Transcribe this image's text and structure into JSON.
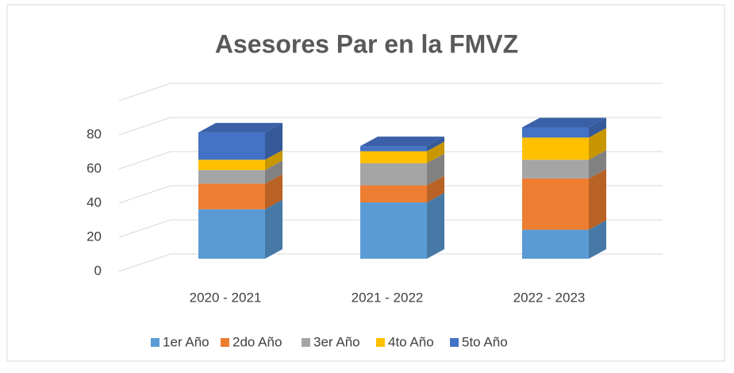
{
  "chart_data": {
    "type": "bar3d_stacked",
    "title": "Asesores Par en la FMVZ",
    "categories": [
      "2020 - 2021",
      "2021 - 2022",
      "2022 - 2023"
    ],
    "series": [
      {
        "name": "1er Año",
        "color": "#5b9bd5",
        "values": [
          29,
          33,
          17
        ]
      },
      {
        "name": "2do Año",
        "color": "#ed7d31",
        "values": [
          15,
          10,
          30
        ]
      },
      {
        "name": "3er Año",
        "color": "#a5a5a5",
        "values": [
          8,
          13,
          11
        ]
      },
      {
        "name": "4to Año",
        "color": "#ffc000",
        "values": [
          6,
          7,
          13
        ]
      },
      {
        "name": "5to Año",
        "color": "#4472c4",
        "values": [
          16,
          3,
          6
        ]
      }
    ],
    "ylim": [
      0,
      100
    ],
    "yticks": [
      0,
      20,
      40,
      60,
      80
    ],
    "grid": true,
    "legend": "bottom"
  }
}
